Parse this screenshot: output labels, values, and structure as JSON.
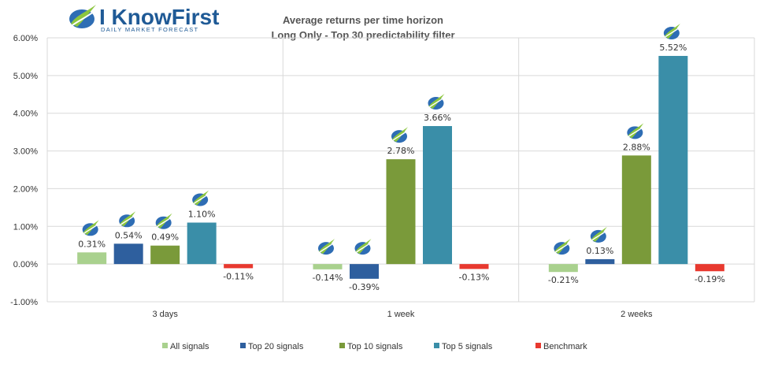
{
  "logo": {
    "name": "I KnowFirst",
    "tagline": "DAILY MARKET FORECAST"
  },
  "chart_data": {
    "type": "bar",
    "title": "Average returns per time horizon",
    "subtitle": "Long Only - Top 30 predictability filter",
    "categories": [
      "3 days",
      "1 week",
      "2 weeks"
    ],
    "series": [
      {
        "name": "All signals",
        "color": "#a9d18e",
        "values": [
          0.31,
          -0.14,
          -0.21
        ]
      },
      {
        "name": "Top 20 signals",
        "color": "#2e5f9e",
        "values": [
          0.54,
          -0.39,
          0.13
        ]
      },
      {
        "name": "Top 10 signals",
        "color": "#7a9a3a",
        "values": [
          0.49,
          2.78,
          2.88
        ]
      },
      {
        "name": "Top 5 signals",
        "color": "#3a8ea8",
        "values": [
          1.1,
          3.66,
          5.52
        ]
      },
      {
        "name": "Benchmark",
        "color": "#e8392f",
        "values": [
          -0.11,
          -0.13,
          -0.19
        ]
      }
    ],
    "data_labels": [
      [
        "0.31%",
        "0.54%",
        "0.49%",
        "1.10%",
        "-0.11%"
      ],
      [
        "-0.14%",
        "-0.39%",
        "2.78%",
        "3.66%",
        "-0.13%"
      ],
      [
        "-0.21%",
        "0.13%",
        "2.88%",
        "5.52%",
        "-0.19%"
      ]
    ],
    "ylim": [
      -1,
      6
    ],
    "yticks": [
      -1,
      0,
      1,
      2,
      3,
      4,
      5,
      6
    ],
    "ytick_labels": [
      "-1.00%",
      "0.00%",
      "1.00%",
      "2.00%",
      "3.00%",
      "4.00%",
      "5.00%",
      "6.00%"
    ],
    "grid": true,
    "legend_position": "bottom",
    "logo_marker_on_series": [
      "All signals",
      "Top 20 signals",
      "Top 10 signals",
      "Top 5 signals"
    ]
  }
}
